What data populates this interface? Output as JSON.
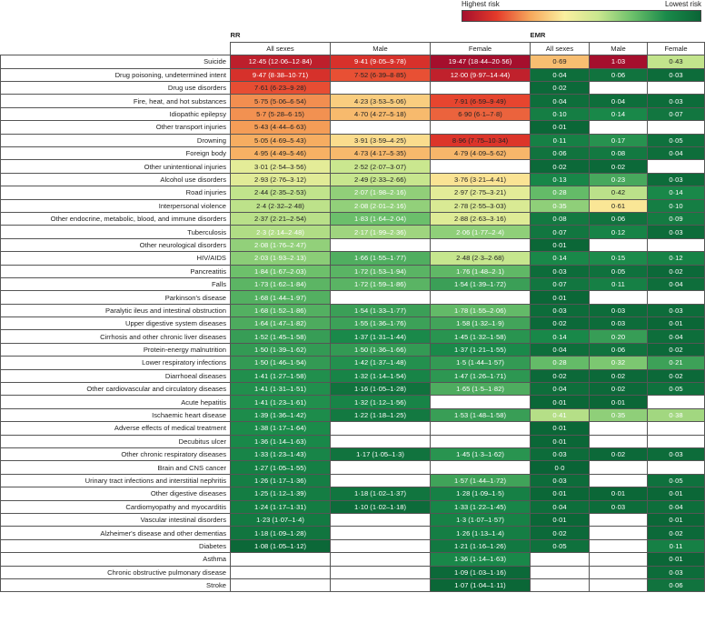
{
  "legend": {
    "low_label": "Highest risk",
    "high_label": "Lowest risk"
  },
  "chart_data": {
    "type": "table",
    "groups": [
      "RR",
      "EMR"
    ],
    "columns": [
      "All sexes",
      "Male",
      "Female",
      "All sexes",
      "Male",
      "Female"
    ],
    "rows": [
      {
        "cause": "Suicide",
        "rr_all": "12·45 (12·06–12·84)",
        "rr_male": "9·41 (9·05–9·78)",
        "rr_female": "19·47 (18·44–20·56)",
        "emr_all": "0·69",
        "emr_male": "1·03",
        "emr_female": "0·43"
      },
      {
        "cause": "Drug poisoning, undetermined intent",
        "rr_all": "9·47 (8·38–10·71)",
        "rr_male": "7·52 (6·39–8·85)",
        "rr_female": "12·00 (9·97–14·44)",
        "emr_all": "0·04",
        "emr_male": "0·06",
        "emr_female": "0·03"
      },
      {
        "cause": "Drug use disorders",
        "rr_all": "7·61 (6·23–9·28)",
        "rr_male": "",
        "rr_female": "",
        "emr_all": "0·02",
        "emr_male": "",
        "emr_female": ""
      },
      {
        "cause": "Fire, heat, and hot substances",
        "rr_all": "5·75 (5·06–6·54)",
        "rr_male": "4·23 (3·53–5·06)",
        "rr_female": "7·91 (6·59–9·49)",
        "emr_all": "0·04",
        "emr_male": "0·04",
        "emr_female": "0·03"
      },
      {
        "cause": "Idiopathic epilepsy",
        "rr_all": "5·7 (5·28–6·15)",
        "rr_male": "4·70 (4·27–5·18)",
        "rr_female": "6·90 (6·1–7·8)",
        "emr_all": "0·10",
        "emr_male": "0·14",
        "emr_female": "0·07"
      },
      {
        "cause": "Other transport injuries",
        "rr_all": "5·43 (4·44–6·63)",
        "rr_male": "",
        "rr_female": "",
        "emr_all": "0·01",
        "emr_male": "",
        "emr_female": ""
      },
      {
        "cause": "Drowning",
        "rr_all": "5·05 (4·69–5·43)",
        "rr_male": "3·91 (3·59–4·25)",
        "rr_female": "8·96 (7·75–10·34)",
        "emr_all": "0·11",
        "emr_male": "0·17",
        "emr_female": "0·05"
      },
      {
        "cause": "Foreign body",
        "rr_all": "4·95 (4·49–5·46)",
        "rr_male": "4·73 (4·17–5·35)",
        "rr_female": "4·79 (4·09–5·62)",
        "emr_all": "0·06",
        "emr_male": "0·08",
        "emr_female": "0·04"
      },
      {
        "cause": "Other unintentional injuries",
        "rr_all": "3·01 (2·54–3·56)",
        "rr_male": "2·52 (2·07–3·07)",
        "rr_female": "",
        "emr_all": "0·02",
        "emr_male": "0·02",
        "emr_female": ""
      },
      {
        "cause": "Alcohol use disorders",
        "rr_all": "2·93 (2·76–3·12)",
        "rr_male": "2·49 (2·33–2·66)",
        "rr_female": "3·76 (3·21–4·41)",
        "emr_all": "0·13",
        "emr_male": "0·23",
        "emr_female": "0·03"
      },
      {
        "cause": "Road injuries",
        "rr_all": "2·44 (2·35–2·53)",
        "rr_male": "2·07 (1·98–2·16)",
        "rr_female": "2·97 (2·75–3·21)",
        "emr_all": "0·28",
        "emr_male": "0·42",
        "emr_female": "0·14"
      },
      {
        "cause": "Interpersonal violence",
        "rr_all": "2·4 (2·32–2·48)",
        "rr_male": "2·08 (2·01–2·16)",
        "rr_female": "2·78 (2·55–3·03)",
        "emr_all": "0·35",
        "emr_male": "0·61",
        "emr_female": "0·10"
      },
      {
        "cause": "Other endocrine, metabolic, blood, and immune disorders",
        "rr_all": "2·37 (2·21–2·54)",
        "rr_male": "1·83 (1·64–2·04)",
        "rr_female": "2·88 (2·63–3·16)",
        "emr_all": "0·08",
        "emr_male": "0·06",
        "emr_female": "0·09"
      },
      {
        "cause": "Tuberculosis",
        "rr_all": "2·3 (2·14–2·48)",
        "rr_male": "2·17 (1·99–2·36)",
        "rr_female": "2·06 (1·77–2·4)",
        "emr_all": "0·07",
        "emr_male": "0·12",
        "emr_female": "0·03"
      },
      {
        "cause": "Other neurological disorders",
        "rr_all": "2·08 (1·76–2·47)",
        "rr_male": "",
        "rr_female": "",
        "emr_all": "0·01",
        "emr_male": "",
        "emr_female": ""
      },
      {
        "cause": "HIV/AIDS",
        "rr_all": "2·03 (1·93–2·13)",
        "rr_male": "1·66 (1·55–1·77)",
        "rr_female": "2·48 (2·3–2·68)",
        "emr_all": "0·14",
        "emr_male": "0·15",
        "emr_female": "0·12"
      },
      {
        "cause": "Pancreatitis",
        "rr_all": "1·84 (1·67–2·03)",
        "rr_male": "1·72 (1·53–1·94)",
        "rr_female": "1·76 (1·48–2·1)",
        "emr_all": "0·03",
        "emr_male": "0·05",
        "emr_female": "0·02"
      },
      {
        "cause": "Falls",
        "rr_all": "1·73 (1·62–1·84)",
        "rr_male": "1·72 (1·59–1·86)",
        "rr_female": "1·54 (1·39–1·72)",
        "emr_all": "0·07",
        "emr_male": "0·11",
        "emr_female": "0·04"
      },
      {
        "cause": "Parkinson's disease",
        "rr_all": "1·68 (1·44–1·97)",
        "rr_male": "",
        "rr_female": "",
        "emr_all": "0·01",
        "emr_male": "",
        "emr_female": ""
      },
      {
        "cause": "Paralytic ileus and intestinal obstruction",
        "rr_all": "1·68 (1·52–1·86)",
        "rr_male": "1·54 (1·33–1·77)",
        "rr_female": "1·78 (1·55–2·06)",
        "emr_all": "0·03",
        "emr_male": "0·03",
        "emr_female": "0·03"
      },
      {
        "cause": "Upper digestive system diseases",
        "rr_all": "1·64 (1·47–1·82)",
        "rr_male": "1·55 (1·36–1·76)",
        "rr_female": "1·58 (1·32–1·9)",
        "emr_all": "0·02",
        "emr_male": "0·03",
        "emr_female": "0·01"
      },
      {
        "cause": "Cirrhosis and other chronic liver diseases",
        "rr_all": "1·52 (1·45–1·58)",
        "rr_male": "1·37 (1·31–1·44)",
        "rr_female": "1·45 (1·32–1·58)",
        "emr_all": "0·14",
        "emr_male": "0·20",
        "emr_female": "0·04"
      },
      {
        "cause": "Protein-energy malnutrition",
        "rr_all": "1·50 (1·39–1·62)",
        "rr_male": "1·50 (1·36–1·66)",
        "rr_female": "1·37 (1·21–1·55)",
        "emr_all": "0·04",
        "emr_male": "0·06",
        "emr_female": "0·02"
      },
      {
        "cause": "Lower respiratory infections",
        "rr_all": "1·50 (1·46–1·54)",
        "rr_male": "1·42 (1·37–1·48)",
        "rr_female": "1·5 (1·44–1·57)",
        "emr_all": "0·28",
        "emr_male": "0·32",
        "emr_female": "0·21"
      },
      {
        "cause": "Diarrhoeal diseases",
        "rr_all": "1·41 (1·27–1·58)",
        "rr_male": "1·32 (1·14–1·54)",
        "rr_female": "1·47 (1·26–1·71)",
        "emr_all": "0·02",
        "emr_male": "0·02",
        "emr_female": "0·02"
      },
      {
        "cause": "Other cardiovascular and circulatory diseases",
        "rr_all": "1·41 (1·31–1·51)",
        "rr_male": "1·16 (1·05–1·28)",
        "rr_female": "1·65 (1·5–1·82)",
        "emr_all": "0·04",
        "emr_male": "0·02",
        "emr_female": "0·05"
      },
      {
        "cause": "Acute hepatitis",
        "rr_all": "1·41 (1·23–1·61)",
        "rr_male": "1·32 (1·12–1·56)",
        "rr_female": "",
        "emr_all": "0·01",
        "emr_male": "0·01",
        "emr_female": ""
      },
      {
        "cause": "Ischaemic heart disease",
        "rr_all": "1·39 (1·36–1·42)",
        "rr_male": "1·22 (1·18–1·25)",
        "rr_female": "1·53 (1·48–1·58)",
        "emr_all": "0·41",
        "emr_male": "0·35",
        "emr_female": "0·38"
      },
      {
        "cause": "Adverse effects of medical treatment",
        "rr_all": "1·38 (1·17–1·64)",
        "rr_male": "",
        "rr_female": "",
        "emr_all": "0·01",
        "emr_male": "",
        "emr_female": ""
      },
      {
        "cause": "Decubitus ulcer",
        "rr_all": "1·36 (1·14–1·63)",
        "rr_male": "",
        "rr_female": "",
        "emr_all": "0·01",
        "emr_male": "",
        "emr_female": ""
      },
      {
        "cause": "Other chronic respiratory diseases",
        "rr_all": "1·33 (1·23–1·43)",
        "rr_male": "1·17 (1·05–1·3)",
        "rr_female": "1·45 (1·3–1·62)",
        "emr_all": "0·03",
        "emr_male": "0·02",
        "emr_female": "0·03"
      },
      {
        "cause": "Brain and CNS cancer",
        "rr_all": "1·27 (1·05–1·55)",
        "rr_male": "",
        "rr_female": "",
        "emr_all": "0·0",
        "emr_male": "",
        "emr_female": ""
      },
      {
        "cause": "Urinary tract infections and interstitial nephritis",
        "rr_all": "1·26 (1·17–1·36)",
        "rr_male": "",
        "rr_female": "1·57 (1·44–1·72)",
        "emr_all": "0·03",
        "emr_male": "",
        "emr_female": "0·05"
      },
      {
        "cause": "Other digestive diseases",
        "rr_all": "1·25 (1·12–1·39)",
        "rr_male": "1·18 (1·02–1·37)",
        "rr_female": "1·28 (1·09–1·5)",
        "emr_all": "0·01",
        "emr_male": "0·01",
        "emr_female": "0·01"
      },
      {
        "cause": "Cardiomyopathy and myocarditis",
        "rr_all": "1·24 (1·17–1·31)",
        "rr_male": "1·10 (1·02–1·18)",
        "rr_female": "1·33 (1·22–1·45)",
        "emr_all": "0·04",
        "emr_male": "0·03",
        "emr_female": "0·04"
      },
      {
        "cause": "Vascular intestinal disorders",
        "rr_all": "1·23 (1·07–1·4)",
        "rr_male": "",
        "rr_female": "1·3 (1·07–1·57)",
        "emr_all": "0·01",
        "emr_male": "",
        "emr_female": "0·01"
      },
      {
        "cause": "Alzheimer's disease and other dementias",
        "rr_all": "1·18 (1·09–1·28)",
        "rr_male": "",
        "rr_female": "1·26 (1·13–1·4)",
        "emr_all": "0·02",
        "emr_male": "",
        "emr_female": "0·02"
      },
      {
        "cause": "Diabetes",
        "rr_all": "1·08 (1·05–1·12)",
        "rr_male": "",
        "rr_female": "1·21 (1·16–1·26)",
        "emr_all": "0·05",
        "emr_male": "",
        "emr_female": "0·11"
      },
      {
        "cause": "Asthma",
        "rr_all": "",
        "rr_male": "",
        "rr_female": "1·36 (1·14–1·63)",
        "emr_all": "",
        "emr_male": "",
        "emr_female": "0·01"
      },
      {
        "cause": "Chronic obstructive pulmonary disease",
        "rr_all": "",
        "rr_male": "",
        "rr_female": "1·09 (1·03–1·16)",
        "emr_all": "",
        "emr_male": "",
        "emr_female": "0·03"
      },
      {
        "cause": "Stroke",
        "rr_all": "",
        "rr_male": "",
        "rr_female": "1·07 (1·04–1·11)",
        "emr_all": "",
        "emr_male": "",
        "emr_female": "0·06"
      }
    ]
  }
}
